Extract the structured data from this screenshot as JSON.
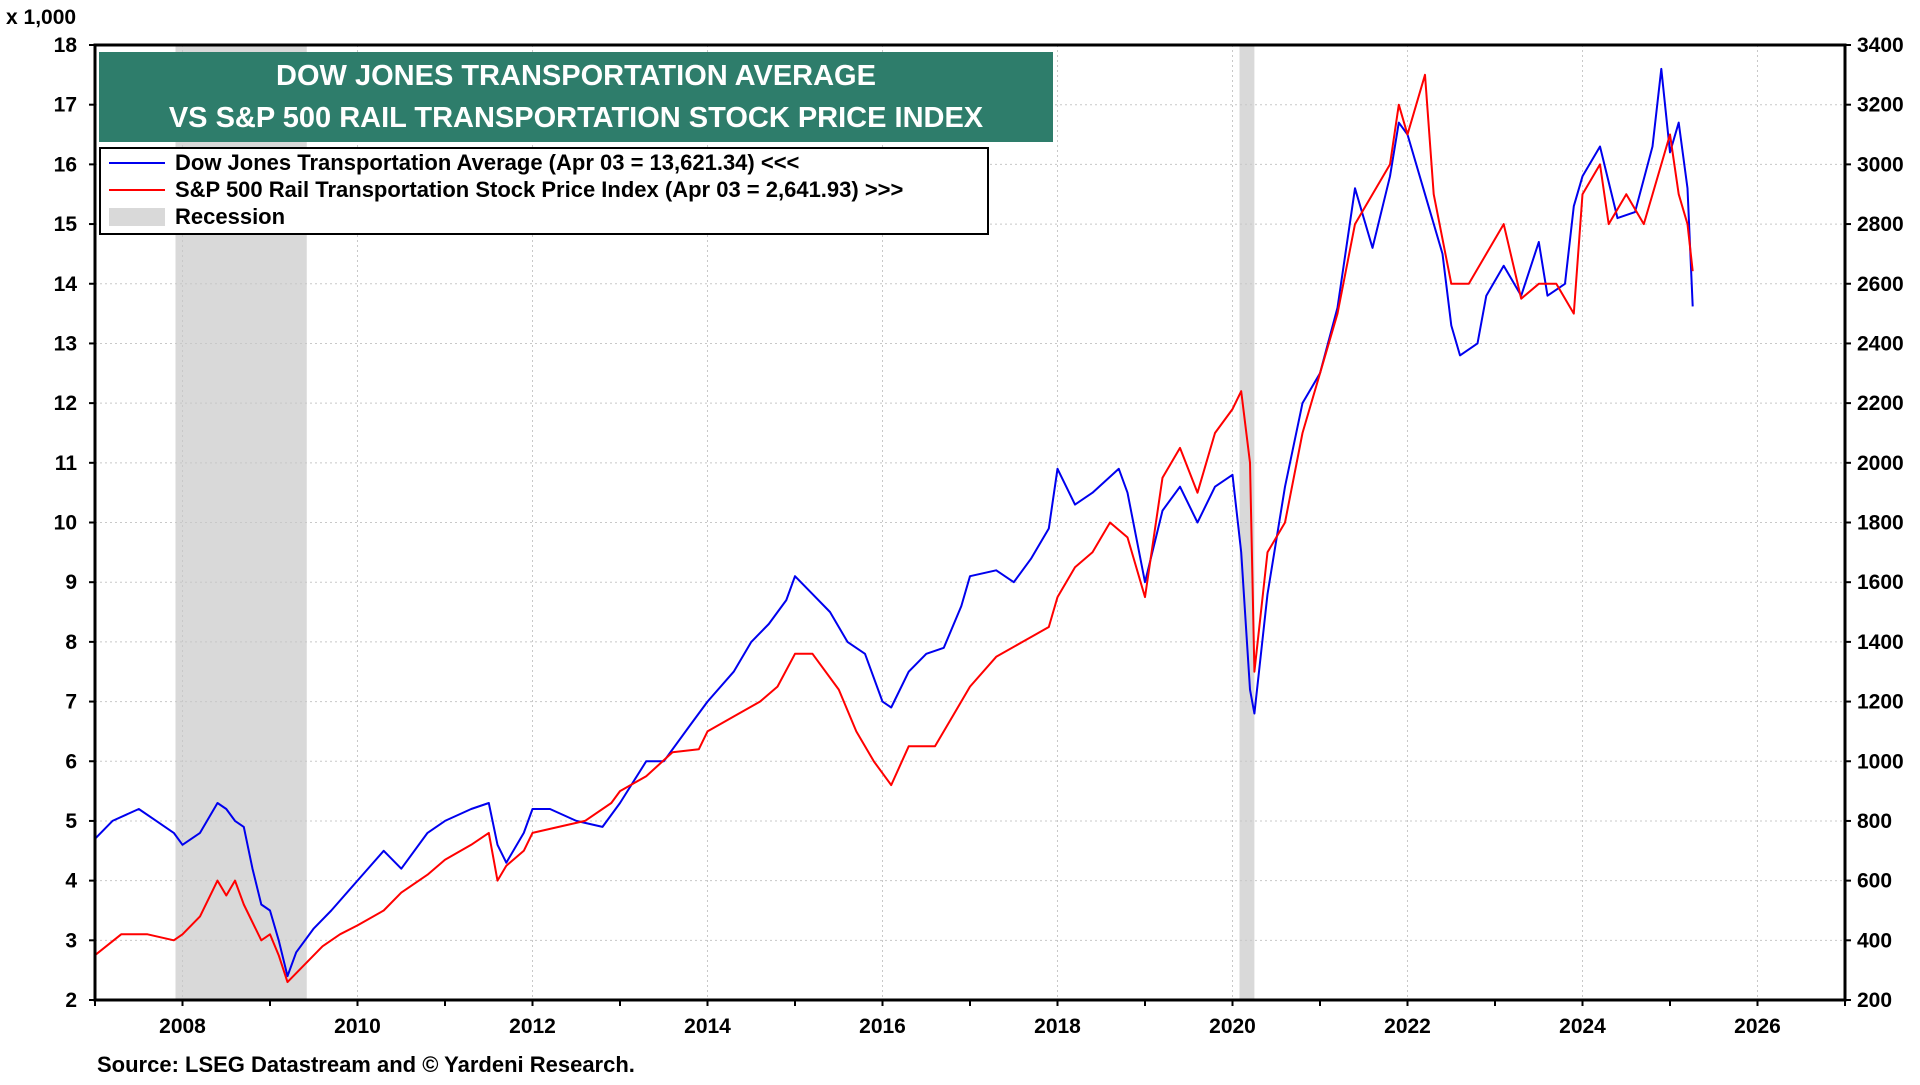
{
  "chart_data": {
    "type": "line",
    "title_lines": [
      "DOW JONES TRANSPORTATION AVERAGE",
      "VS S&P 500 RAIL TRANSPORTATION STOCK PRICE INDEX"
    ],
    "left_axis_unit": "x 1,000",
    "left_ylim": [
      2,
      18
    ],
    "left_ticks": [
      "2",
      "3",
      "4",
      "5",
      "6",
      "7",
      "8",
      "9",
      "10",
      "11",
      "12",
      "13",
      "14",
      "15",
      "16",
      "17",
      "18"
    ],
    "right_ylim": [
      200,
      3400
    ],
    "right_ticks": [
      "200",
      "400",
      "600",
      "800",
      "1000",
      "1200",
      "1400",
      "1600",
      "1800",
      "2000",
      "2200",
      "2400",
      "2600",
      "2800",
      "3000",
      "3200",
      "3400"
    ],
    "xlim": [
      2007.0,
      2027.0
    ],
    "x_ticks": [
      "2008",
      "2010",
      "2012",
      "2014",
      "2016",
      "2018",
      "2020",
      "2022",
      "2024",
      "2026"
    ],
    "legend": {
      "dow": "Dow Jones Transportation Average (Apr 03 = 13,621.34) <<<",
      "rail": "S&P 500 Rail Transportation Stock Price Index (Apr 03 = 2,641.93) >>>",
      "recession": "Recession"
    },
    "recessions": [
      [
        2007.92,
        2009.42
      ],
      [
        2020.08,
        2020.25
      ]
    ],
    "series": [
      {
        "name": "Dow Jones Transportation Average",
        "axis": "left",
        "color": "#0000ee",
        "x": [
          2007.0,
          2007.2,
          2007.5,
          2007.7,
          2007.9,
          2008.0,
          2008.2,
          2008.4,
          2008.5,
          2008.6,
          2008.7,
          2008.8,
          2008.9,
          2009.0,
          2009.1,
          2009.2,
          2009.3,
          2009.5,
          2009.7,
          2010.0,
          2010.3,
          2010.5,
          2010.8,
          2011.0,
          2011.3,
          2011.5,
          2011.6,
          2011.7,
          2011.9,
          2012.0,
          2012.2,
          2012.5,
          2012.8,
          2013.0,
          2013.3,
          2013.5,
          2013.8,
          2014.0,
          2014.3,
          2014.5,
          2014.7,
          2014.9,
          2015.0,
          2015.2,
          2015.4,
          2015.6,
          2015.8,
          2016.0,
          2016.1,
          2016.3,
          2016.5,
          2016.7,
          2016.9,
          2017.0,
          2017.3,
          2017.5,
          2017.7,
          2017.9,
          2018.0,
          2018.2,
          2018.4,
          2018.7,
          2018.8,
          2019.0,
          2019.2,
          2019.4,
          2019.6,
          2019.8,
          2020.0,
          2020.1,
          2020.2,
          2020.25,
          2020.4,
          2020.6,
          2020.8,
          2021.0,
          2021.2,
          2021.4,
          2021.6,
          2021.8,
          2021.9,
          2022.0,
          2022.2,
          2022.4,
          2022.5,
          2022.6,
          2022.8,
          2022.9,
          2023.1,
          2023.3,
          2023.5,
          2023.6,
          2023.8,
          2023.9,
          2024.0,
          2024.2,
          2024.4,
          2024.6,
          2024.8,
          2024.9,
          2025.0,
          2025.1,
          2025.2,
          2025.26
        ],
        "y": [
          4.7,
          5.0,
          5.2,
          5.0,
          4.8,
          4.6,
          4.8,
          5.3,
          5.2,
          5.0,
          4.9,
          4.2,
          3.6,
          3.5,
          3.0,
          2.4,
          2.8,
          3.2,
          3.5,
          4.0,
          4.5,
          4.2,
          4.8,
          5.0,
          5.2,
          5.3,
          4.6,
          4.3,
          4.8,
          5.2,
          5.2,
          5.0,
          4.9,
          5.3,
          6.0,
          6.0,
          6.6,
          7.0,
          7.5,
          8.0,
          8.3,
          8.7,
          9.1,
          8.8,
          8.5,
          8.0,
          7.8,
          7.0,
          6.9,
          7.5,
          7.8,
          7.9,
          8.6,
          9.1,
          9.2,
          9.0,
          9.4,
          9.9,
          10.9,
          10.3,
          10.5,
          10.9,
          10.5,
          9.0,
          10.2,
          10.6,
          10.0,
          10.6,
          10.8,
          9.5,
          7.2,
          6.8,
          8.8,
          10.6,
          12.0,
          12.5,
          13.6,
          15.6,
          14.6,
          15.8,
          16.7,
          16.5,
          15.5,
          14.5,
          13.3,
          12.8,
          13.0,
          13.8,
          14.3,
          13.8,
          14.7,
          13.8,
          14.0,
          15.3,
          15.8,
          16.3,
          15.1,
          15.2,
          16.3,
          17.6,
          16.2,
          16.7,
          15.6,
          13.62
        ]
      },
      {
        "name": "S&P 500 Rail Transportation Stock Price Index",
        "axis": "right",
        "color": "#ff0000",
        "x": [
          2007.0,
          2007.3,
          2007.6,
          2007.9,
          2008.0,
          2008.2,
          2008.4,
          2008.5,
          2008.6,
          2008.7,
          2008.9,
          2009.0,
          2009.1,
          2009.2,
          2009.4,
          2009.6,
          2009.8,
          2010.0,
          2010.3,
          2010.5,
          2010.8,
          2011.0,
          2011.3,
          2011.5,
          2011.6,
          2011.7,
          2011.9,
          2012.0,
          2012.3,
          2012.6,
          2012.9,
          2013.0,
          2013.3,
          2013.6,
          2013.9,
          2014.0,
          2014.3,
          2014.6,
          2014.8,
          2015.0,
          2015.2,
          2015.5,
          2015.7,
          2015.9,
          2016.0,
          2016.1,
          2016.3,
          2016.6,
          2016.8,
          2017.0,
          2017.3,
          2017.6,
          2017.9,
          2018.0,
          2018.2,
          2018.4,
          2018.6,
          2018.8,
          2019.0,
          2019.2,
          2019.4,
          2019.6,
          2019.8,
          2020.0,
          2020.1,
          2020.2,
          2020.25,
          2020.4,
          2020.6,
          2020.8,
          2021.0,
          2021.2,
          2021.4,
          2021.6,
          2021.8,
          2021.9,
          2022.0,
          2022.2,
          2022.3,
          2022.5,
          2022.7,
          2022.9,
          2023.1,
          2023.3,
          2023.5,
          2023.7,
          2023.9,
          2024.0,
          2024.2,
          2024.3,
          2024.5,
          2024.7,
          2024.9,
          2025.0,
          2025.1,
          2025.2,
          2025.26
        ],
        "y": [
          350,
          420,
          420,
          400,
          420,
          480,
          600,
          550,
          600,
          520,
          400,
          420,
          350,
          260,
          320,
          380,
          420,
          450,
          500,
          560,
          620,
          670,
          720,
          760,
          600,
          650,
          700,
          760,
          780,
          800,
          860,
          900,
          950,
          1030,
          1040,
          1100,
          1150,
          1200,
          1250,
          1360,
          1360,
          1240,
          1100,
          1000,
          960,
          920,
          1050,
          1050,
          1150,
          1250,
          1350,
          1400,
          1450,
          1550,
          1650,
          1700,
          1800,
          1750,
          1550,
          1950,
          2050,
          1900,
          2100,
          2180,
          2240,
          2000,
          1300,
          1700,
          1800,
          2100,
          2300,
          2500,
          2800,
          2900,
          3000,
          3200,
          3100,
          3300,
          2900,
          2600,
          2600,
          2700,
          2800,
          2550,
          2600,
          2600,
          2500,
          2900,
          3000,
          2800,
          2900,
          2800,
          3000,
          3100,
          2900,
          2800,
          2641.93
        ]
      }
    ]
  },
  "source": "Source: LSEG Datastream and © Yardeni Research."
}
